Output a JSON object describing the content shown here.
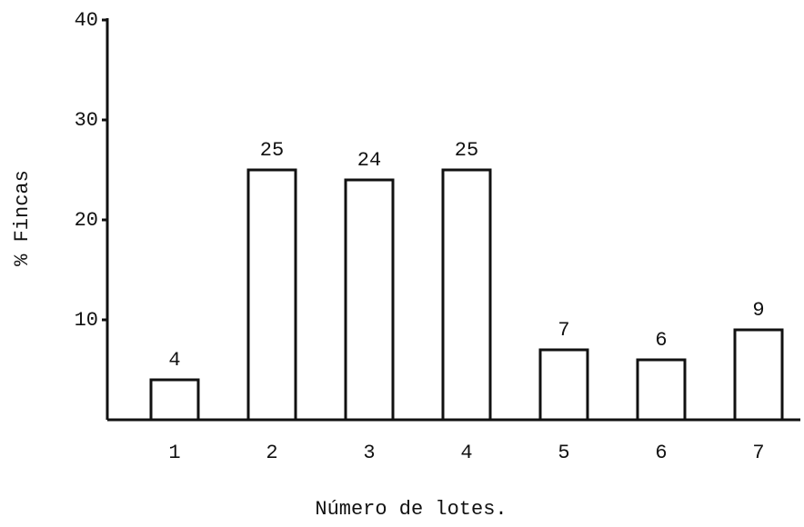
{
  "chart_data": {
    "type": "bar",
    "y_label": "% Fincas",
    "x_label": "Número de lotes.",
    "categories": [
      "1",
      "2",
      "3",
      "4",
      "5",
      "6",
      "7"
    ],
    "values": [
      4,
      25,
      24,
      25,
      7,
      6,
      9
    ],
    "color": "#ffffff",
    "ylim": [
      0,
      40
    ],
    "yticks": [
      10,
      20,
      30,
      40
    ],
    "grid": false
  }
}
